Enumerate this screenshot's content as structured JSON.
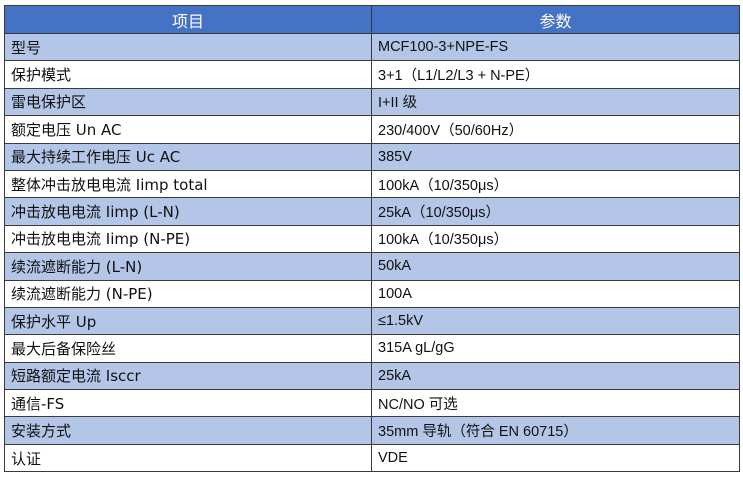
{
  "table": {
    "headers": [
      "项目",
      "参数"
    ],
    "rows": [
      [
        "型号",
        "MCF100-3+NPE-FS"
      ],
      [
        "保护模式",
        "3+1（L1/L2/L3 + N-PE）"
      ],
      [
        "雷电保护区",
        "I+II 级"
      ],
      [
        "额定电压 Un AC",
        "230/400V（50/60Hz）"
      ],
      [
        "最大持续工作电压 Uc AC",
        "385V"
      ],
      [
        "整体冲击放电电流 Iimp total",
        "100kA（10/350μs）"
      ],
      [
        "冲击放电电流 Iimp (L-N)",
        "25kA（10/350μs）"
      ],
      [
        "冲击放电电流 Iimp (N-PE)",
        "100kA（10/350μs）"
      ],
      [
        "续流遮断能力 (L-N)",
        "50kA"
      ],
      [
        "续流遮断能力 (N-PE)",
        "100A"
      ],
      [
        "保护水平 Up",
        "≤1.5kV"
      ],
      [
        "最大后备保险丝",
        "315A gL/gG"
      ],
      [
        "短路额定电流 Isccr",
        "25kA"
      ],
      [
        "通信-FS",
        "NC/NO 可选"
      ],
      [
        "安装方式",
        "35mm 导轨（符合 EN 60715）"
      ],
      [
        "认证",
        "VDE"
      ]
    ]
  },
  "colors": {
    "header": "#4472C4",
    "row_odd": "#B4C6E7",
    "row_even": "#FFFFFF"
  }
}
